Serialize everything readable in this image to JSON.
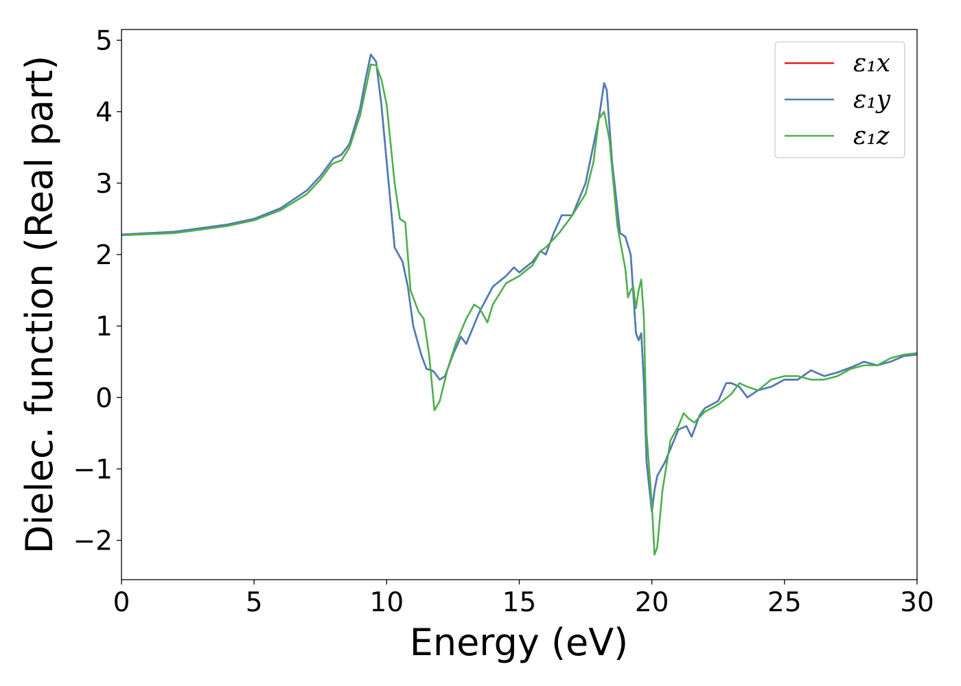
{
  "chart_data": {
    "type": "line",
    "title": "",
    "xlabel": "Energy (eV)",
    "ylabel": "Dielec. function (Real part)",
    "xlim": [
      0,
      30
    ],
    "ylim": [
      -2.55,
      5.15
    ],
    "xticks": [
      0,
      5,
      10,
      15,
      20,
      25,
      30
    ],
    "xtick_labels": [
      "0",
      "5",
      "10",
      "15",
      "20",
      "25",
      "30"
    ],
    "yticks": [
      -2,
      -1,
      0,
      1,
      2,
      3,
      4,
      5
    ],
    "ytick_labels": [
      "−2",
      "−1",
      "0",
      "1",
      "2",
      "3",
      "4",
      "5"
    ],
    "grid": false,
    "legend_position": "top-right",
    "series": [
      {
        "name": "ε₁x",
        "color": "#e41a1c",
        "x": [
          0,
          2,
          4,
          5,
          6,
          7,
          7.5,
          8,
          8.3,
          8.6,
          9.0,
          9.2,
          9.4,
          9.6,
          9.8,
          10.0,
          10.3,
          10.6,
          10.8,
          11.0,
          11.3,
          11.5,
          11.7,
          11.8,
          12.0,
          12.2,
          12.5,
          12.8,
          13.0,
          13.5,
          14.0,
          14.5,
          14.8,
          15.0,
          15.5,
          15.8,
          16.0,
          16.3,
          16.6,
          17.0,
          17.5,
          18.0,
          18.2,
          18.3,
          18.5,
          18.8,
          19.0,
          19.2,
          19.4,
          19.5,
          19.6,
          19.7,
          19.8,
          20.0,
          20.1,
          20.2,
          20.5,
          21.0,
          21.3,
          21.5,
          21.8,
          22.0,
          22.5,
          22.8,
          23.0,
          23.3,
          23.6,
          24.0,
          24.5,
          25.0,
          25.5,
          26.0,
          26.5,
          27.0,
          27.5,
          28.0,
          28.5,
          29.0,
          29.5,
          30.0
        ],
        "values": [
          2.28,
          2.32,
          2.42,
          2.5,
          2.65,
          2.9,
          3.1,
          3.35,
          3.4,
          3.55,
          4.05,
          4.45,
          4.8,
          4.7,
          4.1,
          3.3,
          2.1,
          1.9,
          1.55,
          1.0,
          0.6,
          0.4,
          0.38,
          0.35,
          0.25,
          0.3,
          0.6,
          0.85,
          0.75,
          1.2,
          1.55,
          1.7,
          1.82,
          1.75,
          1.9,
          2.05,
          2.0,
          2.3,
          2.55,
          2.55,
          3.0,
          3.9,
          4.4,
          4.3,
          3.3,
          2.3,
          2.25,
          2.0,
          0.9,
          0.8,
          0.9,
          0.2,
          -0.9,
          -1.6,
          -1.3,
          -1.1,
          -0.9,
          -0.45,
          -0.4,
          -0.55,
          -0.25,
          -0.15,
          -0.05,
          0.2,
          0.2,
          0.15,
          0.0,
          0.1,
          0.15,
          0.25,
          0.25,
          0.38,
          0.3,
          0.35,
          0.42,
          0.5,
          0.45,
          0.5,
          0.58,
          0.6
        ]
      },
      {
        "name": "ε₁y",
        "color": "#4a7fb8",
        "x": [
          0,
          2,
          4,
          5,
          6,
          7,
          7.5,
          8,
          8.3,
          8.6,
          9.0,
          9.2,
          9.4,
          9.6,
          9.8,
          10.0,
          10.3,
          10.6,
          10.8,
          11.0,
          11.3,
          11.5,
          11.7,
          11.8,
          12.0,
          12.2,
          12.5,
          12.8,
          13.0,
          13.5,
          14.0,
          14.5,
          14.8,
          15.0,
          15.5,
          15.8,
          16.0,
          16.3,
          16.6,
          17.0,
          17.5,
          18.0,
          18.2,
          18.3,
          18.5,
          18.8,
          19.0,
          19.2,
          19.4,
          19.5,
          19.6,
          19.7,
          19.8,
          20.0,
          20.1,
          20.2,
          20.5,
          21.0,
          21.3,
          21.5,
          21.8,
          22.0,
          22.5,
          22.8,
          23.0,
          23.3,
          23.6,
          24.0,
          24.5,
          25.0,
          25.5,
          26.0,
          26.5,
          27.0,
          27.5,
          28.0,
          28.5,
          29.0,
          29.5,
          30.0
        ],
        "values": [
          2.28,
          2.32,
          2.42,
          2.5,
          2.65,
          2.9,
          3.1,
          3.35,
          3.4,
          3.55,
          4.05,
          4.45,
          4.8,
          4.7,
          4.1,
          3.3,
          2.1,
          1.9,
          1.55,
          1.0,
          0.6,
          0.4,
          0.38,
          0.35,
          0.25,
          0.3,
          0.6,
          0.85,
          0.75,
          1.2,
          1.55,
          1.7,
          1.82,
          1.75,
          1.9,
          2.05,
          2.0,
          2.3,
          2.55,
          2.55,
          3.0,
          3.9,
          4.4,
          4.3,
          3.3,
          2.3,
          2.25,
          2.0,
          0.9,
          0.8,
          0.9,
          0.2,
          -0.9,
          -1.6,
          -1.3,
          -1.1,
          -0.9,
          -0.45,
          -0.4,
          -0.55,
          -0.25,
          -0.15,
          -0.05,
          0.2,
          0.2,
          0.15,
          0.0,
          0.1,
          0.15,
          0.25,
          0.25,
          0.38,
          0.3,
          0.35,
          0.42,
          0.5,
          0.45,
          0.5,
          0.58,
          0.6
        ]
      },
      {
        "name": "ε₁z",
        "color": "#4daf4a",
        "x": [
          0,
          2,
          4,
          5,
          6,
          7,
          7.5,
          7.9,
          8.0,
          8.3,
          8.6,
          9.0,
          9.2,
          9.4,
          9.6,
          9.8,
          10.0,
          10.3,
          10.5,
          10.7,
          10.9,
          11.2,
          11.4,
          11.6,
          11.8,
          12.0,
          12.3,
          12.6,
          13.0,
          13.3,
          13.5,
          13.8,
          14.0,
          14.5,
          15.0,
          15.5,
          15.8,
          16.0,
          16.5,
          17.0,
          17.5,
          17.8,
          18.0,
          18.2,
          18.4,
          18.7,
          19.0,
          19.1,
          19.2,
          19.3,
          19.4,
          19.5,
          19.6,
          19.7,
          19.8,
          20.0,
          20.1,
          20.2,
          20.4,
          20.7,
          21.0,
          21.2,
          21.4,
          21.6,
          22.0,
          22.5,
          23.0,
          23.3,
          23.6,
          24.0,
          24.5,
          25.0,
          25.5,
          26.0,
          26.5,
          27.0,
          27.5,
          28.0,
          28.5,
          29.0,
          29.5,
          30.0
        ],
        "values": [
          2.27,
          2.3,
          2.4,
          2.48,
          2.62,
          2.85,
          3.05,
          3.25,
          3.28,
          3.32,
          3.5,
          3.95,
          4.3,
          4.66,
          4.65,
          4.45,
          4.1,
          3.0,
          2.5,
          2.45,
          1.5,
          1.2,
          1.1,
          0.6,
          -0.18,
          -0.05,
          0.4,
          0.75,
          1.1,
          1.3,
          1.25,
          1.05,
          1.3,
          1.6,
          1.7,
          1.85,
          2.05,
          2.1,
          2.3,
          2.55,
          2.85,
          3.3,
          3.9,
          4.0,
          3.6,
          2.4,
          1.8,
          1.4,
          1.5,
          1.55,
          1.25,
          1.5,
          1.65,
          1.1,
          -0.5,
          -1.5,
          -2.2,
          -2.1,
          -1.3,
          -0.6,
          -0.4,
          -0.22,
          -0.3,
          -0.35,
          -0.2,
          -0.1,
          0.05,
          0.2,
          0.15,
          0.1,
          0.25,
          0.3,
          0.3,
          0.25,
          0.25,
          0.3,
          0.4,
          0.45,
          0.45,
          0.55,
          0.6,
          0.62
        ]
      }
    ]
  }
}
